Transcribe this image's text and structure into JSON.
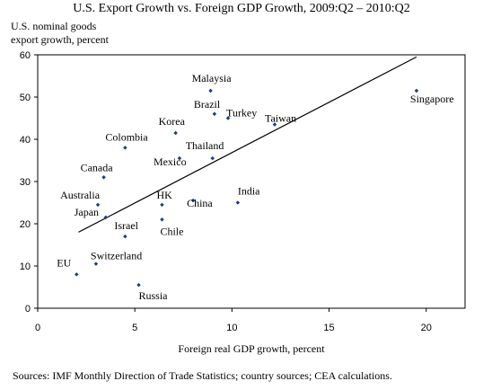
{
  "chart_data": {
    "type": "scatter",
    "title": "U.S. Export Growth vs. Foreign GDP Growth, 2009:Q2 – 2010:Q2",
    "ylabel": [
      "U.S. nominal goods",
      "export growth, percent"
    ],
    "xlabel": "Foreign real GDP growth, percent",
    "xlim": [
      0,
      22
    ],
    "ylim": [
      0,
      60
    ],
    "xticks": [
      0,
      5,
      10,
      15,
      20
    ],
    "yticks": [
      0,
      10,
      20,
      30,
      40,
      50,
      60
    ],
    "grid": false,
    "points": [
      {
        "label": "EU",
        "x": 2.0,
        "y": 8
      },
      {
        "label": "Switzerland",
        "x": 3.0,
        "y": 10.5
      },
      {
        "label": "Russia",
        "x": 5.2,
        "y": 5.5
      },
      {
        "label": "Israel",
        "x": 4.5,
        "y": 17
      },
      {
        "label": "Japan",
        "x": 3.5,
        "y": 21.5
      },
      {
        "label": "Australia",
        "x": 3.1,
        "y": 24.5
      },
      {
        "label": "Canada",
        "x": 3.4,
        "y": 31
      },
      {
        "label": "Colombia",
        "x": 4.5,
        "y": 38
      },
      {
        "label": "Chile",
        "x": 6.4,
        "y": 21
      },
      {
        "label": "HK",
        "x": 6.4,
        "y": 24.5
      },
      {
        "label": "China",
        "x": 8.0,
        "y": 25.5
      },
      {
        "label": "Mexico",
        "x": 7.3,
        "y": 35.5
      },
      {
        "label": "Thailand",
        "x": 9.0,
        "y": 35.5
      },
      {
        "label": "Korea",
        "x": 7.1,
        "y": 41.5
      },
      {
        "label": "India",
        "x": 10.3,
        "y": 25
      },
      {
        "label": "Brazil",
        "x": 9.1,
        "y": 46
      },
      {
        "label": "Malaysia",
        "x": 8.9,
        "y": 51.5
      },
      {
        "label": "Turkey",
        "x": 9.8,
        "y": 45
      },
      {
        "label": "Taiwan",
        "x": 12.2,
        "y": 43.5
      },
      {
        "label": "Singapore",
        "x": 19.5,
        "y": 51.5
      }
    ],
    "trendline": {
      "x": [
        2.1,
        19.5
      ],
      "y": [
        18,
        59.5
      ]
    }
  },
  "footer": {
    "source": "Sources:  IMF Monthly Direction of Trade Statistics; country sources; CEA calculations."
  }
}
